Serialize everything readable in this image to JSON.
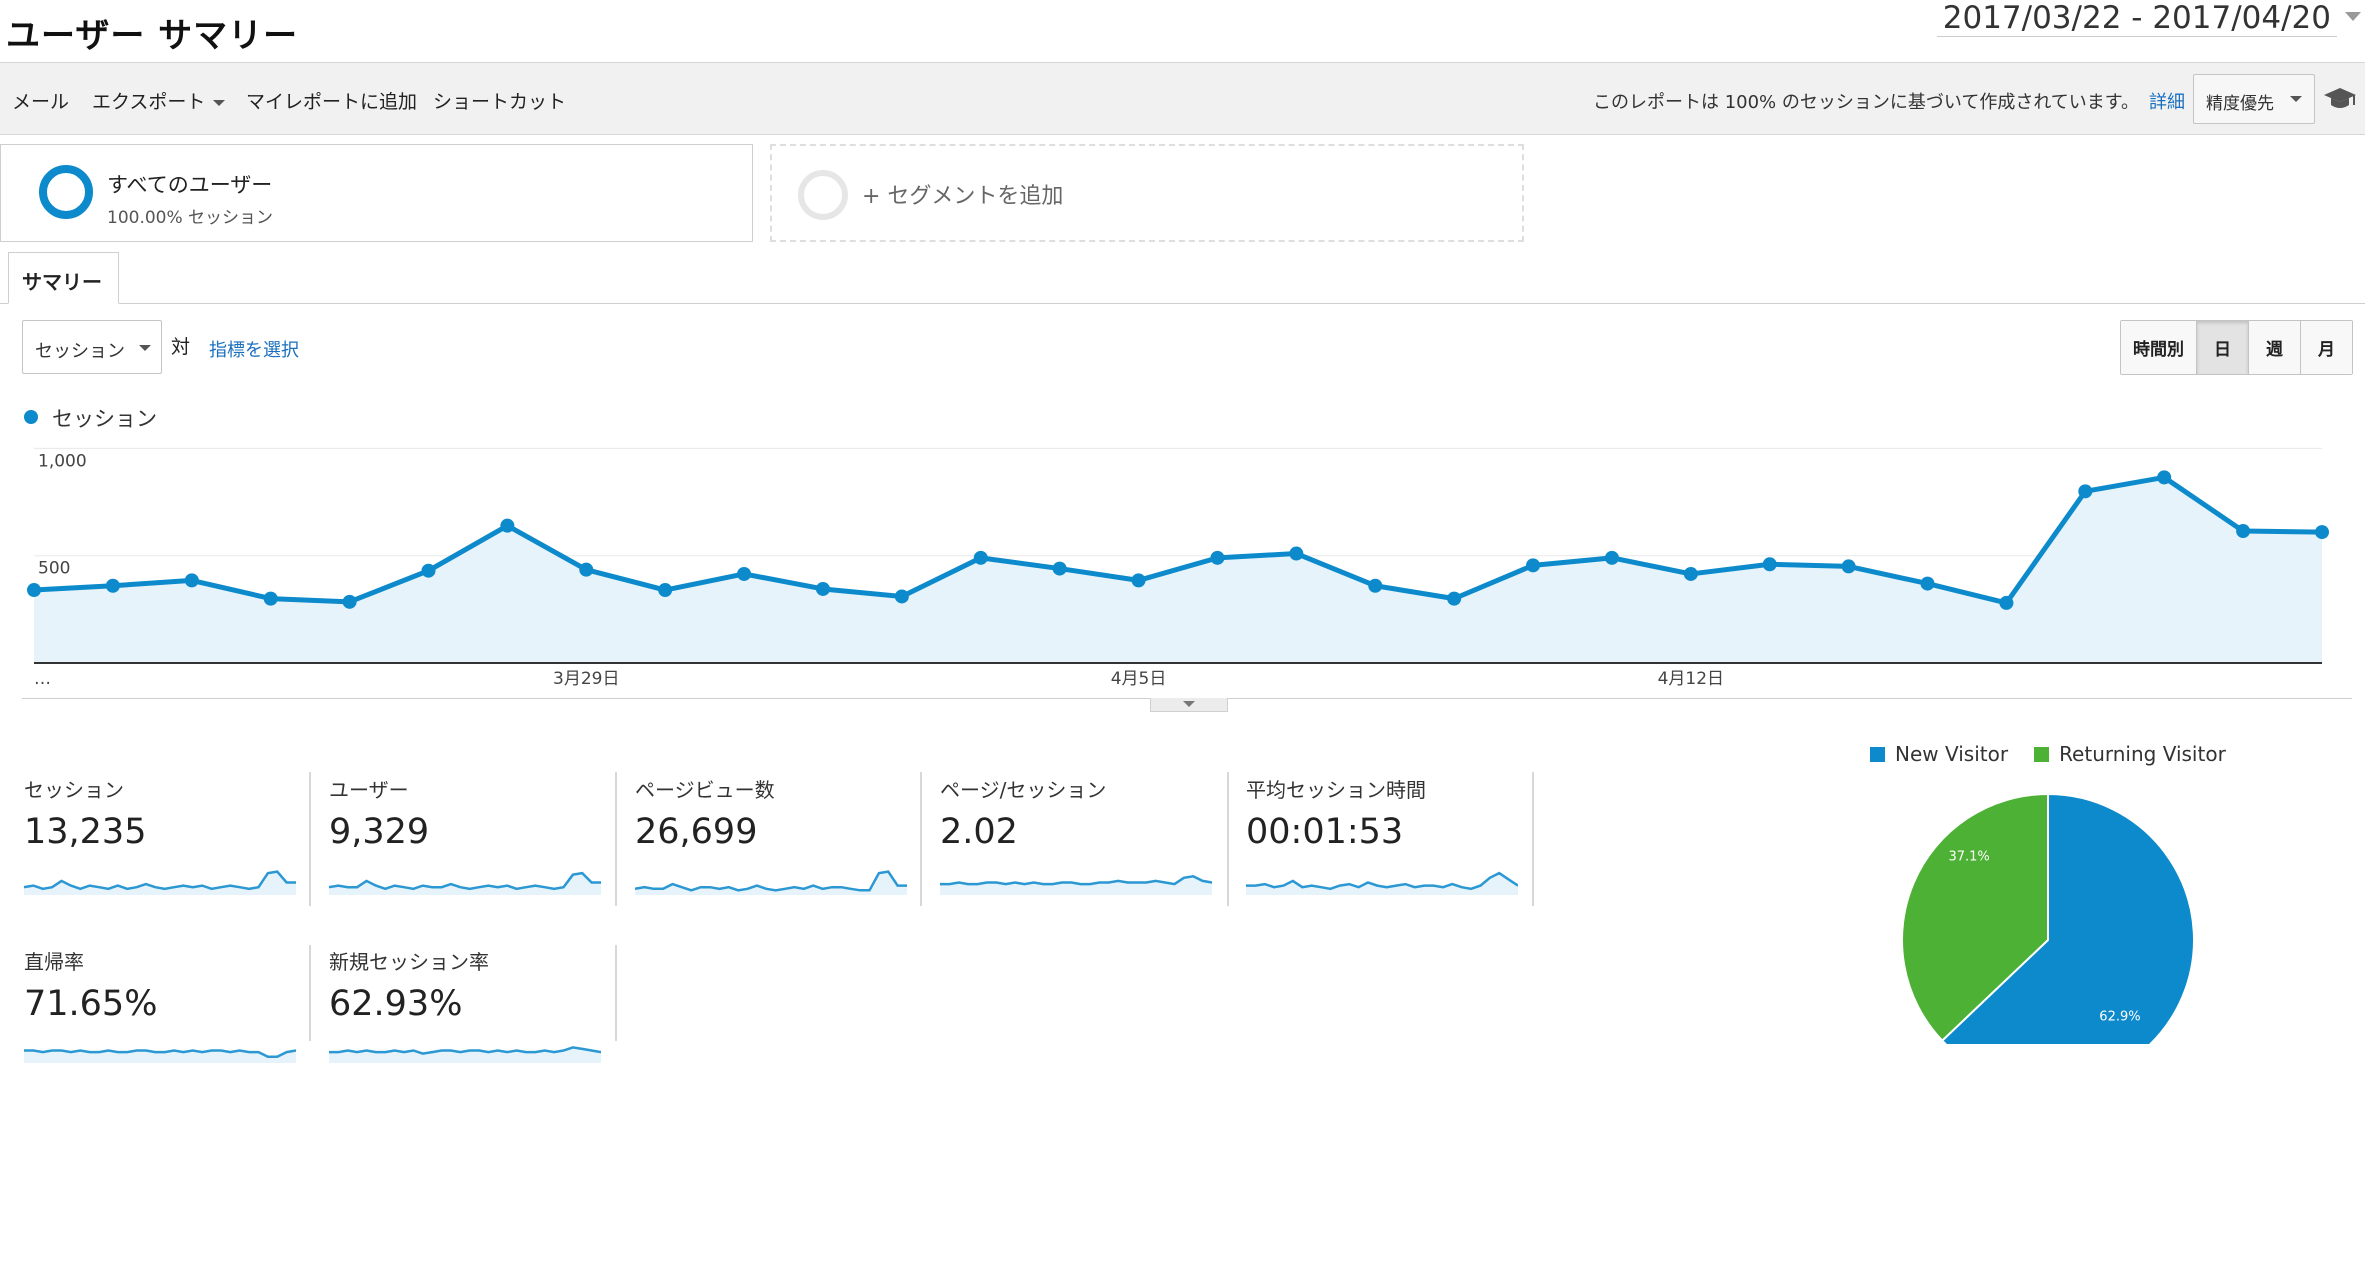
{
  "header": {
    "title": "ユーザー サマリー",
    "date_range": "2017/03/22 - 2017/04/20"
  },
  "toolbar": {
    "email": "メール",
    "export": "エクスポート",
    "add_to_dashboard": "マイレポートに追加",
    "shortcut": "ショートカット",
    "report_note": "このレポートは 100% のセッションに基づいて作成されています。",
    "details_link": "詳細",
    "precision_select": "精度優先"
  },
  "segments": {
    "all_users": {
      "name": "すべてのユーザー",
      "pct": "100.00% セッション"
    },
    "add_segment": "+ セグメントを追加"
  },
  "tabs": {
    "summary": "サマリー"
  },
  "chart_controls": {
    "metric_select": "セッション",
    "vs": "対",
    "select_metric_link": "指標を選択",
    "period_buttons": [
      "時間別",
      "日",
      "週",
      "月"
    ],
    "active_period": "日"
  },
  "chart_data": [
    {
      "type": "area",
      "series": [
        {
          "name": "セッション",
          "values": [
            340,
            360,
            385,
            300,
            285,
            430,
            640,
            435,
            340,
            415,
            345,
            310,
            490,
            440,
            385,
            490,
            510,
            360,
            300,
            455,
            490,
            415,
            460,
            450,
            370,
            280,
            800,
            865,
            615,
            610
          ]
        }
      ],
      "y_ticks": [
        {
          "value": 500,
          "label": "500"
        },
        {
          "value": 1000,
          "label": "1,000"
        }
      ],
      "x_ticks": [
        {
          "index": 0,
          "label": "…"
        },
        {
          "index": 7,
          "label": "3月29日"
        },
        {
          "index": 14,
          "label": "4月5日"
        },
        {
          "index": 21,
          "label": "4月12日"
        }
      ],
      "ylim": [
        0,
        1000
      ],
      "grid": true,
      "color": "#0d8acb",
      "fill_color": "#e6f3fa"
    },
    {
      "type": "pie",
      "categories": [
        "New Visitor",
        "Returning Visitor"
      ],
      "values": [
        62.9,
        37.1
      ],
      "labels": [
        "62.9%",
        "37.1%"
      ],
      "colors": [
        "#0d8acb",
        "#4cb134"
      ],
      "legend": "top"
    }
  ],
  "metrics": [
    {
      "label": "セッション",
      "value": "13,235",
      "spark": [
        5,
        6,
        4,
        5,
        9,
        6,
        4,
        6,
        5,
        4,
        6,
        4,
        5,
        7,
        5,
        4,
        5,
        6,
        5,
        6,
        4,
        5,
        6,
        5,
        4,
        5,
        14,
        15,
        8,
        8
      ]
    },
    {
      "label": "ユーザー",
      "value": "9,329",
      "spark": [
        5,
        6,
        5,
        5,
        9,
        6,
        4,
        6,
        5,
        4,
        6,
        5,
        5,
        7,
        5,
        4,
        5,
        6,
        5,
        6,
        4,
        5,
        6,
        5,
        4,
        5,
        13,
        14,
        8,
        8
      ]
    },
    {
      "label": "ページビュー数",
      "value": "26,699",
      "spark": [
        4,
        5,
        4,
        4,
        7,
        5,
        3,
        5,
        5,
        4,
        5,
        3,
        4,
        6,
        4,
        3,
        4,
        5,
        4,
        6,
        4,
        5,
        5,
        4,
        3,
        3,
        14,
        15,
        6,
        6
      ]
    },
    {
      "label": "ページ/セッション",
      "value": "2.02",
      "spark": [
        7,
        7,
        8,
        7,
        7,
        8,
        8,
        7,
        8,
        7,
        8,
        7,
        7,
        8,
        8,
        7,
        7,
        8,
        8,
        9,
        8,
        8,
        8,
        9,
        8,
        7,
        11,
        12,
        9,
        8
      ]
    },
    {
      "label": "平均セッション時間",
      "value": "00:01:53",
      "spark": [
        6,
        6,
        7,
        5,
        6,
        9,
        5,
        6,
        5,
        4,
        6,
        7,
        5,
        8,
        6,
        5,
        6,
        7,
        5,
        6,
        6,
        5,
        7,
        5,
        4,
        6,
        11,
        14,
        10,
        6
      ]
    },
    {
      "label": "直帰率",
      "value": "71.65%",
      "spark": [
        8,
        8,
        7,
        8,
        8,
        7,
        8,
        7,
        7,
        8,
        7,
        7,
        8,
        8,
        7,
        7,
        8,
        7,
        8,
        7,
        8,
        8,
        7,
        8,
        7,
        7,
        4,
        4,
        7,
        8
      ]
    },
    {
      "label": "新規セッション率",
      "value": "62.93%",
      "spark": [
        7,
        7,
        8,
        7,
        8,
        7,
        7,
        8,
        7,
        8,
        6,
        7,
        8,
        8,
        7,
        8,
        8,
        7,
        8,
        7,
        8,
        7,
        7,
        8,
        7,
        8,
        10,
        9,
        8,
        7
      ]
    }
  ]
}
